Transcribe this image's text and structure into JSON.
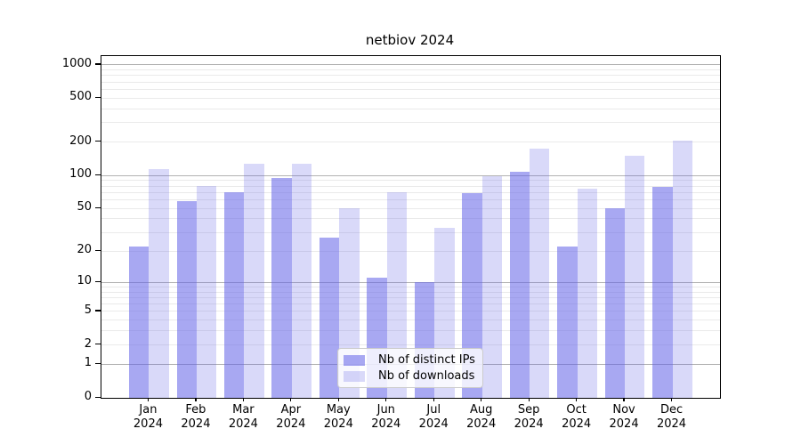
{
  "title": "netbiov 2024",
  "chart_data": {
    "type": "bar",
    "title": "netbiov 2024",
    "categories": [
      "Jan 2024",
      "Feb 2024",
      "Mar 2024",
      "Apr 2024",
      "May 2024",
      "Jun 2024",
      "Jul 2024",
      "Aug 2024",
      "Sep 2024",
      "Oct 2024",
      "Nov 2024",
      "Dec 2024"
    ],
    "series": [
      {
        "name": "Nb of distinct IPs",
        "values": [
          22,
          58,
          70,
          94,
          27,
          11,
          10,
          69,
          107,
          22,
          50,
          79
        ]
      },
      {
        "name": "Nb of downloads",
        "values": [
          114,
          80,
          128,
          128,
          50,
          70,
          33,
          99,
          175,
          76,
          150,
          207
        ]
      }
    ],
    "yscale": "log1p",
    "yticks": [
      0,
      1,
      2,
      5,
      10,
      20,
      50,
      100,
      200,
      500,
      1000
    ],
    "ylim": [
      0,
      1200
    ],
    "xlabel": "",
    "ylabel": "",
    "grid": "horizontal, major at powers of 10, minor at 2-9 per decade",
    "legend_position": "inside-bottom-center"
  },
  "legend": {
    "items": [
      {
        "label": "Nb of distinct IPs"
      },
      {
        "label": "Nb of downloads"
      }
    ]
  },
  "colors": {
    "ips_bar": "rgba(97,97,232,0.55)",
    "downloads_bar": "rgba(97,97,232,0.24)",
    "grid_major": "#b2b2b2",
    "grid_minor": "#eaeaea",
    "axis": "#000000",
    "text": "#000000",
    "legend_border": "#cccccc",
    "legend_bg": "rgba(255,255,255,0.8)"
  }
}
